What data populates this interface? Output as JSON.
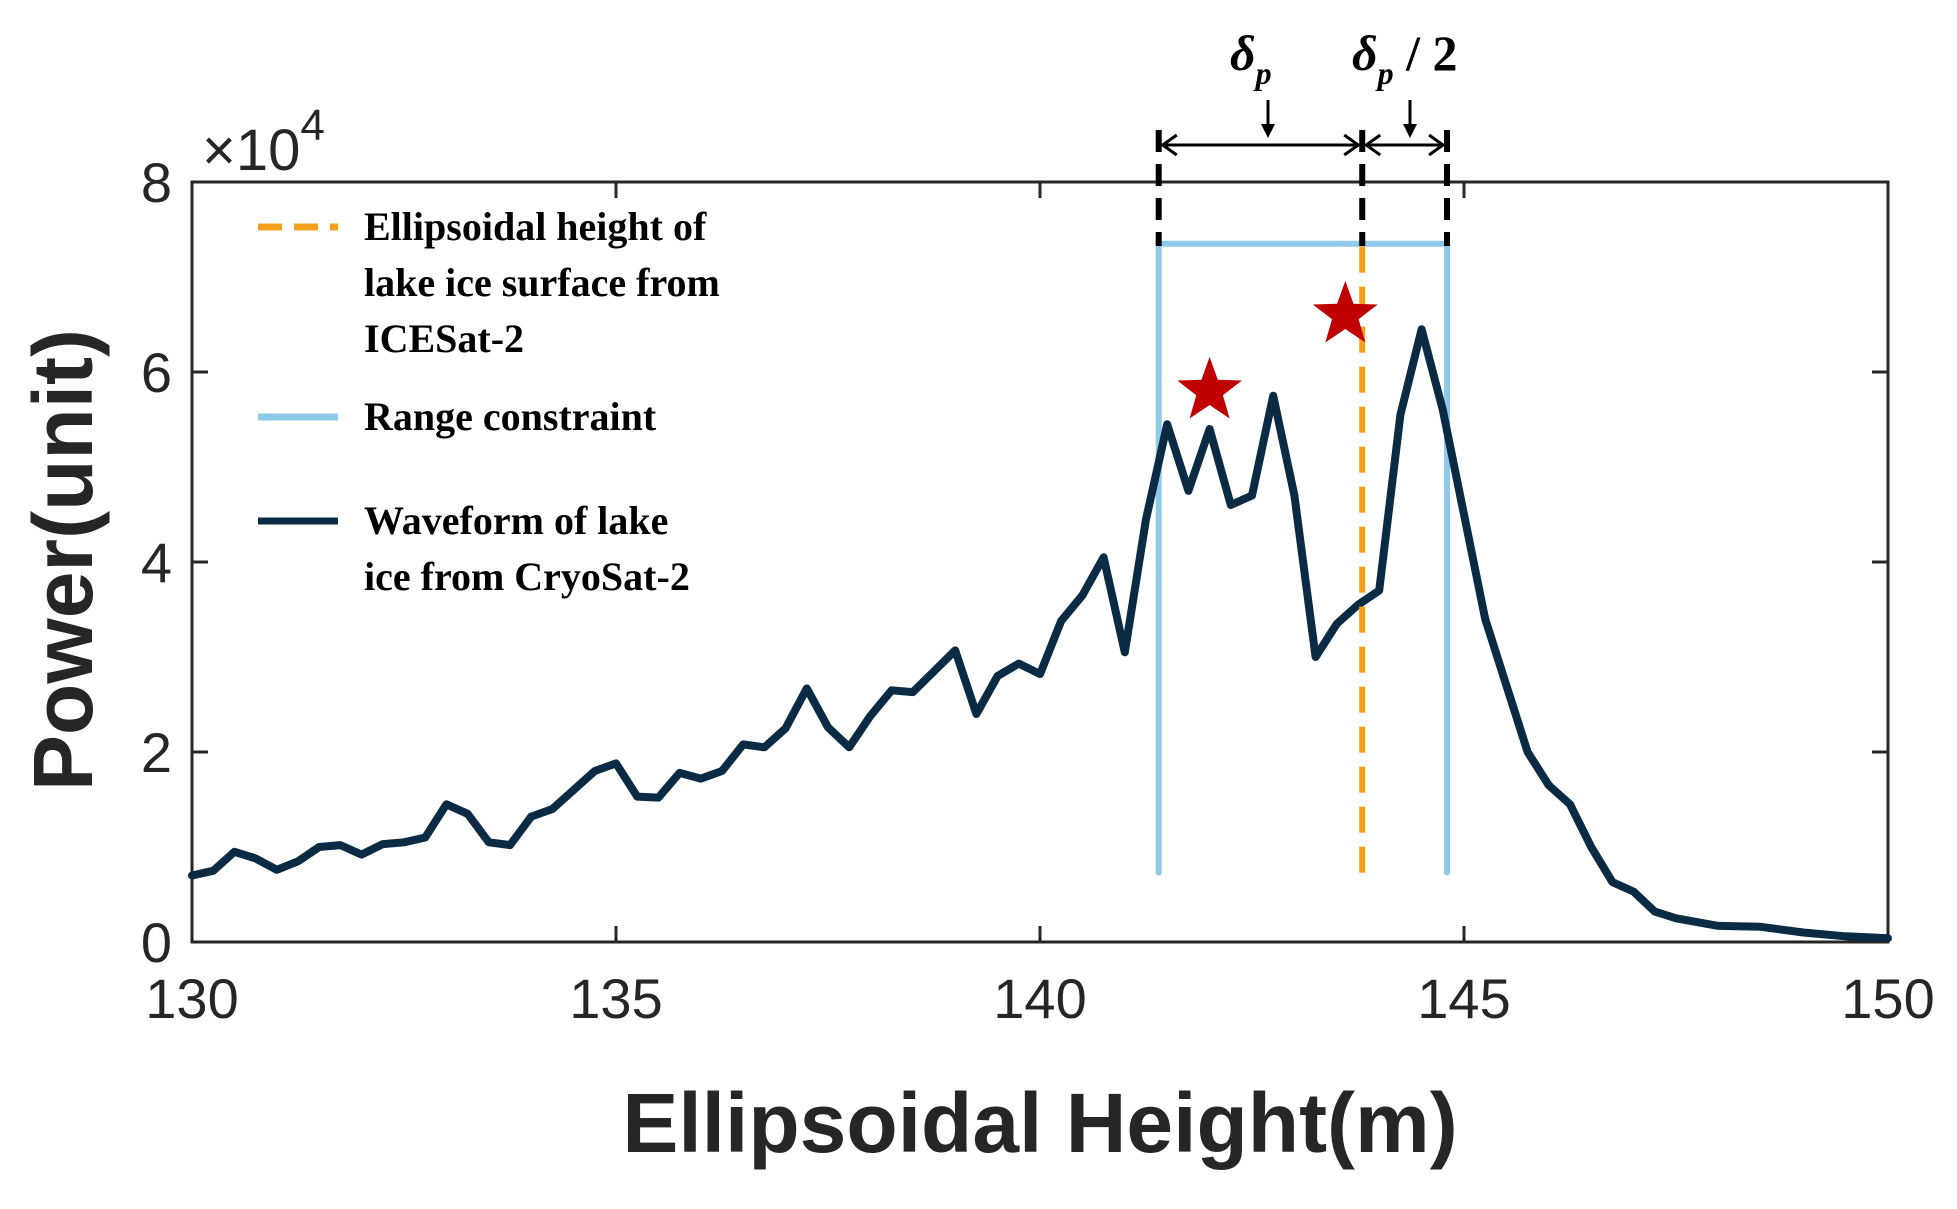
{
  "chart_data": {
    "type": "line",
    "xlabel": "Ellipsoidal Height(m)",
    "ylabel": "Power(unit)",
    "xlim": [
      130,
      150
    ],
    "ylim": [
      0,
      80000
    ],
    "xticks": [
      130,
      135,
      140,
      145,
      150
    ],
    "yticks": [
      0,
      2,
      4,
      6,
      8
    ],
    "y_multiplier": "×10",
    "y_multiplier_exponent": "4",
    "series": [
      {
        "name": "Waveform of lake ice from CryoSat-2",
        "color": "#0b2a44",
        "style": "solid",
        "x": [
          130.0,
          130.25,
          130.5,
          130.75,
          131.0,
          131.25,
          131.5,
          131.75,
          132.0,
          132.25,
          132.5,
          132.75,
          133.0,
          133.25,
          133.5,
          133.75,
          134.0,
          134.25,
          134.5,
          134.75,
          135.0,
          135.25,
          135.5,
          135.75,
          136.0,
          136.25,
          136.5,
          136.75,
          137.0,
          137.25,
          137.5,
          137.75,
          138.0,
          138.25,
          138.5,
          138.75,
          139.0,
          139.25,
          139.5,
          139.75,
          140.0,
          140.25,
          140.5,
          140.75,
          141.0,
          141.25,
          141.5,
          141.75,
          142.0,
          142.25,
          142.5,
          142.75,
          143.0,
          143.25,
          143.5,
          143.75,
          144.0,
          144.25,
          144.5,
          144.75,
          145.0,
          145.25,
          145.5,
          145.75,
          146.0,
          146.25,
          146.5,
          146.75,
          147.0,
          147.25,
          147.5,
          148.0,
          148.5,
          149.0,
          149.5,
          150.0
        ],
        "values": [
          7000,
          7500,
          9500,
          8800,
          7600,
          8500,
          10000,
          10200,
          9200,
          10300,
          10500,
          11000,
          14500,
          13500,
          10500,
          10200,
          13200,
          14000,
          16000,
          18000,
          18800,
          15300,
          15200,
          17800,
          17200,
          18000,
          20800,
          20500,
          22500,
          26700,
          22600,
          20500,
          23800,
          26500,
          26300,
          28500,
          30700,
          24000,
          28000,
          29300,
          28200,
          33800,
          36500,
          40500,
          30500,
          44500,
          54500,
          47500,
          54000,
          46000,
          47000,
          57500,
          47000,
          30000,
          33500,
          35500,
          37000,
          55500,
          64500,
          56000,
          45000,
          34000,
          27000,
          20000,
          16500,
          14500,
          10000,
          6300,
          5300,
          3200,
          2500,
          1700,
          1600,
          1000,
          600,
          400
        ]
      },
      {
        "name": "Ellipsoidal height of lake ice surface from ICESat-2",
        "color": "#f5a01a",
        "style": "dashed",
        "x": [
          143.8,
          143.8
        ],
        "values": [
          7300,
          73500
        ]
      },
      {
        "name": "Range constraint",
        "color": "#8ec9ea",
        "style": "solid",
        "x": [
          141.4,
          141.4,
          144.8,
          144.8
        ],
        "values": [
          7300,
          73500,
          73500,
          7300
        ]
      }
    ],
    "peaks": [
      {
        "x": 142.0,
        "value": 58000
      },
      {
        "x": 143.6,
        "value": 66000
      }
    ],
    "annotation_bounds": [
      141.4,
      143.8,
      144.8
    ],
    "legend": [
      {
        "key": "icesat",
        "lines": [
          "Ellipsoidal  height  of",
          "lake ice surface from",
          "ICESat-2"
        ],
        "color": "#f5a01a",
        "style": "dashed"
      },
      {
        "key": "range",
        "lines": [
          "Range constraint"
        ],
        "color": "#8ec9ea",
        "style": "solid"
      },
      {
        "key": "waveform",
        "lines": [
          "Waveform of lake",
          "ice from CryoSat-2"
        ],
        "color": "#0b2a44",
        "style": "solid"
      }
    ],
    "legend_position": "top-left",
    "annotations": {
      "delta": "δ",
      "sub": "p",
      "half_suffix": " / 2"
    },
    "colors": {
      "waveform": "#0b2a44",
      "range": "#8ec9ea",
      "icesat": "#f5a01a",
      "star": "#c00000",
      "axis": "#262626"
    }
  }
}
